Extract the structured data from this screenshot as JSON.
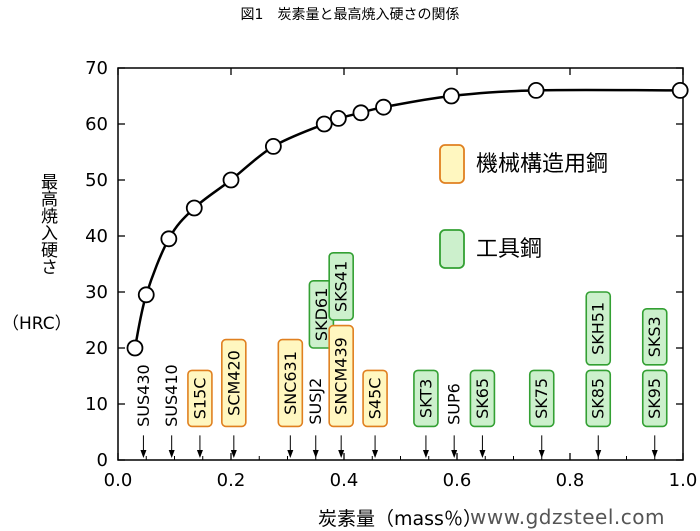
{
  "title": "図1　炭素量と最高焼入硬さの関係",
  "watermark": "www.gdzsteel.com",
  "legend": [
    {
      "label": "機械構造用鋼",
      "fill": "#fff7c0",
      "stroke": "#e08020"
    },
    {
      "label": "工具鋼",
      "fill": "#ccf0cc",
      "stroke": "#33a033"
    }
  ],
  "chart_data": {
    "type": "line",
    "xlabel": "炭素量（mass％）",
    "ylabel": "最高焼入硬さ",
    "yunit": "（HRC）",
    "xlim": [
      0,
      1.0
    ],
    "ylim": [
      0,
      70
    ],
    "xticks": [
      0.0,
      0.2,
      0.4,
      0.6,
      0.8,
      1.0
    ],
    "xtick_labels": [
      "0.0",
      "0.2",
      "0.4",
      "0.6",
      "0.8",
      "1.0"
    ],
    "yticks": [
      0,
      10,
      20,
      30,
      40,
      50,
      60,
      70
    ],
    "ytick_labels": [
      "0",
      "10",
      "20",
      "30",
      "40",
      "50",
      "60",
      "70"
    ],
    "series": [
      {
        "x": [
          0.03,
          0.05,
          0.09,
          0.135,
          0.2,
          0.275,
          0.365,
          0.39,
          0.43,
          0.47,
          0.59,
          0.74,
          0.995
        ],
        "y": [
          20,
          29.5,
          39.5,
          45,
          50,
          56,
          60,
          61,
          62,
          63,
          65,
          66,
          66
        ]
      }
    ],
    "annotations": [
      {
        "label": "SUS430",
        "x": 0.045,
        "y": [
          4,
          19
        ],
        "kind": "plain"
      },
      {
        "label": "SUS410",
        "x": 0.095,
        "y": [
          4,
          19
        ],
        "kind": "plain"
      },
      {
        "label": "S15C",
        "x": 0.145,
        "y": [
          6,
          16
        ],
        "kind": "structural"
      },
      {
        "label": "SCM420",
        "x": 0.205,
        "y": [
          6,
          21.5
        ],
        "kind": "structural"
      },
      {
        "label": "SNC631",
        "x": 0.305,
        "y": [
          6,
          21.5
        ],
        "kind": "structural"
      },
      {
        "label": "SUSJ2",
        "x": 0.35,
        "y": [
          4,
          17
        ],
        "kind": "plain"
      },
      {
        "label": "SKD61",
        "x": 0.36,
        "y": [
          20,
          32
        ],
        "kind": "tool"
      },
      {
        "label": "SNCM439",
        "x": 0.395,
        "y": [
          6,
          24
        ],
        "kind": "structural"
      },
      {
        "label": "SKS41",
        "x": 0.395,
        "y": [
          25,
          37
        ],
        "kind": "tool"
      },
      {
        "label": "S45C",
        "x": 0.455,
        "y": [
          6,
          16
        ],
        "kind": "structural"
      },
      {
        "label": "SKT3",
        "x": 0.545,
        "y": [
          6,
          16
        ],
        "kind": "tool"
      },
      {
        "label": "SUP6",
        "x": 0.595,
        "y": [
          4,
          16
        ],
        "kind": "plain"
      },
      {
        "label": "SK65",
        "x": 0.645,
        "y": [
          6,
          16
        ],
        "kind": "tool"
      },
      {
        "label": "SK75",
        "x": 0.75,
        "y": [
          6,
          16
        ],
        "kind": "tool"
      },
      {
        "label": "SK85",
        "x": 0.85,
        "y": [
          6,
          16
        ],
        "kind": "tool"
      },
      {
        "label": "SKH51",
        "x": 0.85,
        "y": [
          17,
          30
        ],
        "kind": "tool"
      },
      {
        "label": "SK95",
        "x": 0.95,
        "y": [
          6,
          16
        ],
        "kind": "tool"
      },
      {
        "label": "SKS3",
        "x": 0.95,
        "y": [
          17,
          27
        ],
        "kind": "tool"
      }
    ],
    "grid": false,
    "legend_position": "right"
  }
}
